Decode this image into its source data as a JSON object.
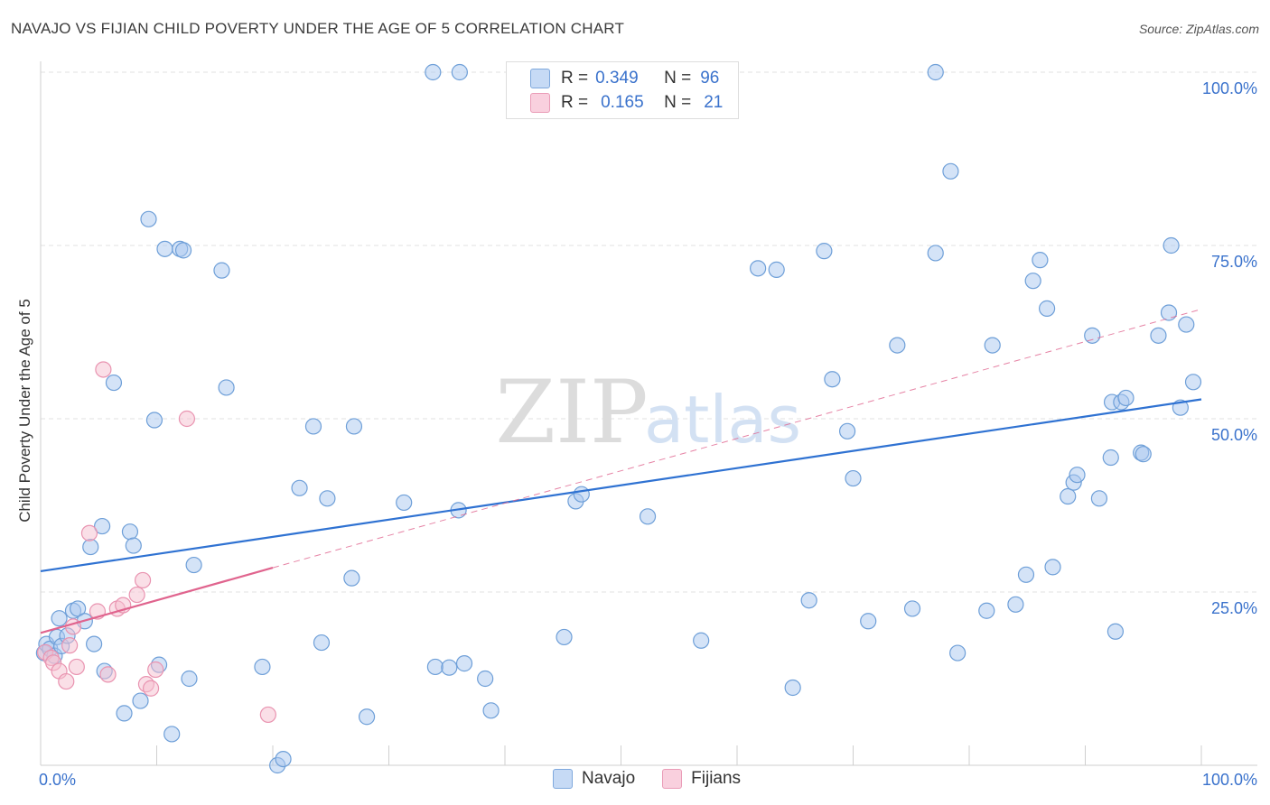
{
  "title": "NAVAJO VS FIJIAN CHILD POVERTY UNDER THE AGE OF 5 CORRELATION CHART",
  "source": "Source: ZipAtlas.com",
  "watermark": {
    "zip": "ZIP",
    "atlas": "atlas"
  },
  "legend": {
    "navajo": {
      "r_label": "R =",
      "r_value": "0.349",
      "n_label": "N =",
      "n_value": "96"
    },
    "fijians": {
      "r_label": "R =",
      "r_value": "0.165",
      "n_label": "N =",
      "n_value": "21"
    }
  },
  "bottom_legend": {
    "navajo": "Navajo",
    "fijians": "Fijians"
  },
  "colors": {
    "navajo_fill": "#a9c8f0",
    "navajo_stroke": "#6e9fd8",
    "navajo_line": "#2f72d2",
    "fijian_fill": "#f6bfd0",
    "fijian_stroke": "#e993b0",
    "fijian_line": "#e0648e",
    "grid": "#e2e2e2",
    "tick_label": "#3a72cc"
  },
  "chart_data": {
    "type": "scatter",
    "title": "NAVAJO VS FIJIAN CHILD POVERTY UNDER THE AGE OF 5 CORRELATION CHART",
    "xlabel": "",
    "ylabel": "Child Poverty Under the Age of 5",
    "xlim": [
      0,
      100
    ],
    "ylim": [
      0,
      100
    ],
    "x_tick_labels": [
      "0.0%",
      "100.0%"
    ],
    "y_ticks": [
      25,
      50,
      75,
      100
    ],
    "y_tick_labels": [
      "25.0%",
      "50.0%",
      "75.0%",
      "100.0%"
    ],
    "grid": true,
    "legend_placement": "top-center",
    "series": [
      {
        "name": "Navajo",
        "r": 0.349,
        "n": 96,
        "trend": {
          "x": [
            0,
            100
          ],
          "y": [
            28.0,
            52.8
          ]
        },
        "points": [
          [
            0.3,
            16.2
          ],
          [
            0.5,
            17.5
          ],
          [
            0.8,
            16.8
          ],
          [
            1.2,
            15.8
          ],
          [
            1.4,
            18.5
          ],
          [
            1.8,
            17.2
          ],
          [
            1.6,
            21.2
          ],
          [
            2.3,
            18.7
          ],
          [
            2.8,
            22.3
          ],
          [
            3.2,
            22.6
          ],
          [
            3.8,
            20.8
          ],
          [
            4.3,
            31.5
          ],
          [
            4.6,
            17.5
          ],
          [
            5.5,
            13.6
          ],
          [
            5.3,
            34.5
          ],
          [
            6.3,
            55.2
          ],
          [
            7.2,
            7.5
          ],
          [
            7.7,
            33.7
          ],
          [
            8.0,
            31.7
          ],
          [
            8.6,
            9.3
          ],
          [
            9.3,
            78.8
          ],
          [
            9.8,
            49.8
          ],
          [
            10.2,
            14.5
          ],
          [
            11.3,
            4.5
          ],
          [
            10.7,
            74.5
          ],
          [
            12.0,
            74.5
          ],
          [
            12.3,
            74.3
          ],
          [
            12.8,
            12.5
          ],
          [
            13.2,
            28.9
          ],
          [
            15.6,
            71.4
          ],
          [
            16.0,
            54.5
          ],
          [
            19.1,
            14.2
          ],
          [
            20.4,
            0.0
          ],
          [
            20.9,
            0.9
          ],
          [
            22.3,
            40.0
          ],
          [
            23.5,
            48.9
          ],
          [
            24.2,
            17.7
          ],
          [
            24.7,
            38.5
          ],
          [
            26.8,
            27.0
          ],
          [
            27.0,
            48.9
          ],
          [
            28.1,
            7.0
          ],
          [
            31.3,
            37.9
          ],
          [
            33.8,
            100.0
          ],
          [
            34.0,
            14.2
          ],
          [
            35.2,
            14.1
          ],
          [
            36.0,
            36.8
          ],
          [
            36.1,
            100.0
          ],
          [
            36.5,
            14.7
          ],
          [
            38.3,
            12.5
          ],
          [
            38.8,
            7.9
          ],
          [
            45.1,
            18.5
          ],
          [
            46.1,
            38.1
          ],
          [
            46.6,
            39.1
          ],
          [
            52.3,
            35.9
          ],
          [
            56.9,
            18.0
          ],
          [
            61.8,
            71.7
          ],
          [
            63.4,
            71.5
          ],
          [
            64.8,
            11.2
          ],
          [
            66.2,
            23.8
          ],
          [
            67.5,
            74.2
          ],
          [
            68.2,
            55.7
          ],
          [
            69.5,
            48.2
          ],
          [
            70.0,
            41.4
          ],
          [
            71.3,
            20.8
          ],
          [
            73.8,
            60.6
          ],
          [
            75.1,
            22.6
          ],
          [
            77.1,
            100.0
          ],
          [
            77.1,
            73.9
          ],
          [
            78.4,
            85.7
          ],
          [
            79.0,
            16.2
          ],
          [
            81.5,
            22.3
          ],
          [
            82.0,
            60.6
          ],
          [
            84.0,
            23.2
          ],
          [
            84.9,
            27.5
          ],
          [
            85.5,
            69.9
          ],
          [
            86.1,
            72.9
          ],
          [
            86.7,
            65.9
          ],
          [
            87.2,
            28.6
          ],
          [
            88.5,
            38.8
          ],
          [
            89.0,
            40.8
          ],
          [
            89.3,
            41.9
          ],
          [
            90.6,
            62.0
          ],
          [
            91.2,
            38.5
          ],
          [
            92.2,
            44.4
          ],
          [
            92.3,
            52.4
          ],
          [
            92.6,
            19.3
          ],
          [
            93.1,
            52.4
          ],
          [
            93.5,
            53.0
          ],
          [
            94.8,
            45.1
          ],
          [
            95.0,
            44.9
          ],
          [
            96.3,
            62.0
          ],
          [
            97.2,
            65.3
          ],
          [
            97.4,
            75.0
          ],
          [
            98.2,
            51.6
          ],
          [
            98.7,
            63.6
          ],
          [
            99.3,
            55.3
          ]
        ]
      },
      {
        "name": "Fijians",
        "r": 0.165,
        "n": 21,
        "trend": {
          "x": [
            0,
            20
          ],
          "y": [
            19.1,
            28.5
          ]
        },
        "trend_dashed": {
          "x": [
            20,
            100
          ],
          "y": [
            28.5,
            65.8
          ]
        },
        "points": [
          [
            0.4,
            16.3
          ],
          [
            0.9,
            15.5
          ],
          [
            1.1,
            14.8
          ],
          [
            1.6,
            13.6
          ],
          [
            2.2,
            12.1
          ],
          [
            2.5,
            17.3
          ],
          [
            2.8,
            20.0
          ],
          [
            3.1,
            14.2
          ],
          [
            4.2,
            33.5
          ],
          [
            4.9,
            22.2
          ],
          [
            5.4,
            57.1
          ],
          [
            5.8,
            13.1
          ],
          [
            6.6,
            22.6
          ],
          [
            7.1,
            23.1
          ],
          [
            8.3,
            24.6
          ],
          [
            8.8,
            26.7
          ],
          [
            9.1,
            11.7
          ],
          [
            9.5,
            11.1
          ],
          [
            9.9,
            13.8
          ],
          [
            12.6,
            50.0
          ],
          [
            19.6,
            7.3
          ]
        ]
      }
    ]
  }
}
